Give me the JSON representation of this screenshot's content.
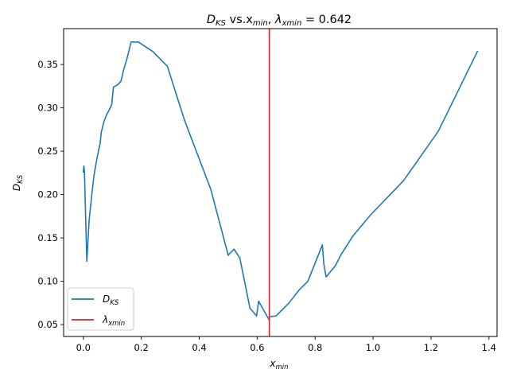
{
  "chart_data": {
    "type": "line",
    "title": {
      "prefix": "D",
      "prefix_sub": "KS",
      "middle": " vs.x",
      "middle_sub": "min",
      "sep": ", ",
      "lambda": "λ",
      "lambda_sub": "xmin",
      "suffix": " = 0.642"
    },
    "xlabel": {
      "main": "x",
      "sub": "min"
    },
    "ylabel": {
      "main": "D",
      "sub": "KS"
    },
    "xlim": [
      -0.068,
      1.428
    ],
    "ylim": [
      0.0363,
      0.3914
    ],
    "xticks": [
      0.0,
      0.2,
      0.4,
      0.6,
      0.8,
      1.0,
      1.2,
      1.4
    ],
    "xtick_labels": [
      "0.0",
      "0.2",
      "0.4",
      "0.6",
      "0.8",
      "1.0",
      "1.2",
      "1.4"
    ],
    "yticks": [
      0.05,
      0.1,
      0.15,
      0.2,
      0.25,
      0.3,
      0.35
    ],
    "ytick_labels": [
      "0.05",
      "0.10",
      "0.15",
      "0.20",
      "0.25",
      "0.30",
      "0.35"
    ],
    "grid": false,
    "legend_position": "lower-left",
    "series": [
      {
        "name": "D",
        "name_sub": "KS",
        "color": "#1f77b4",
        "x": [
          0.0,
          0.002,
          0.004,
          0.012,
          0.02,
          0.028,
          0.036,
          0.044,
          0.052,
          0.058,
          0.062,
          0.07,
          0.08,
          0.09,
          0.098,
          0.104,
          0.12,
          0.13,
          0.14,
          0.15,
          0.165,
          0.19,
          0.24,
          0.29,
          0.35,
          0.44,
          0.5,
          0.52,
          0.54,
          0.575,
          0.598,
          0.605,
          0.642,
          0.642,
          0.665,
          0.71,
          0.745,
          0.775,
          0.825,
          0.83,
          0.838,
          0.87,
          0.89,
          0.93,
          0.99,
          1.105,
          1.225,
          1.36
        ],
        "y": [
          0.226,
          0.233,
          0.225,
          0.123,
          0.17,
          0.196,
          0.22,
          0.236,
          0.25,
          0.259,
          0.272,
          0.283,
          0.292,
          0.298,
          0.304,
          0.324,
          0.327,
          0.331,
          0.345,
          0.356,
          0.376,
          0.376,
          0.365,
          0.348,
          0.285,
          0.206,
          0.13,
          0.137,
          0.127,
          0.069,
          0.06,
          0.077,
          0.055,
          0.059,
          0.06,
          0.075,
          0.09,
          0.1,
          0.142,
          0.12,
          0.105,
          0.118,
          0.131,
          0.152,
          0.176,
          0.216,
          0.273,
          0.365
        ]
      }
    ],
    "vline": {
      "name": "λ",
      "name_sub": "xmin",
      "x": 0.642,
      "color": "#d62728"
    }
  }
}
